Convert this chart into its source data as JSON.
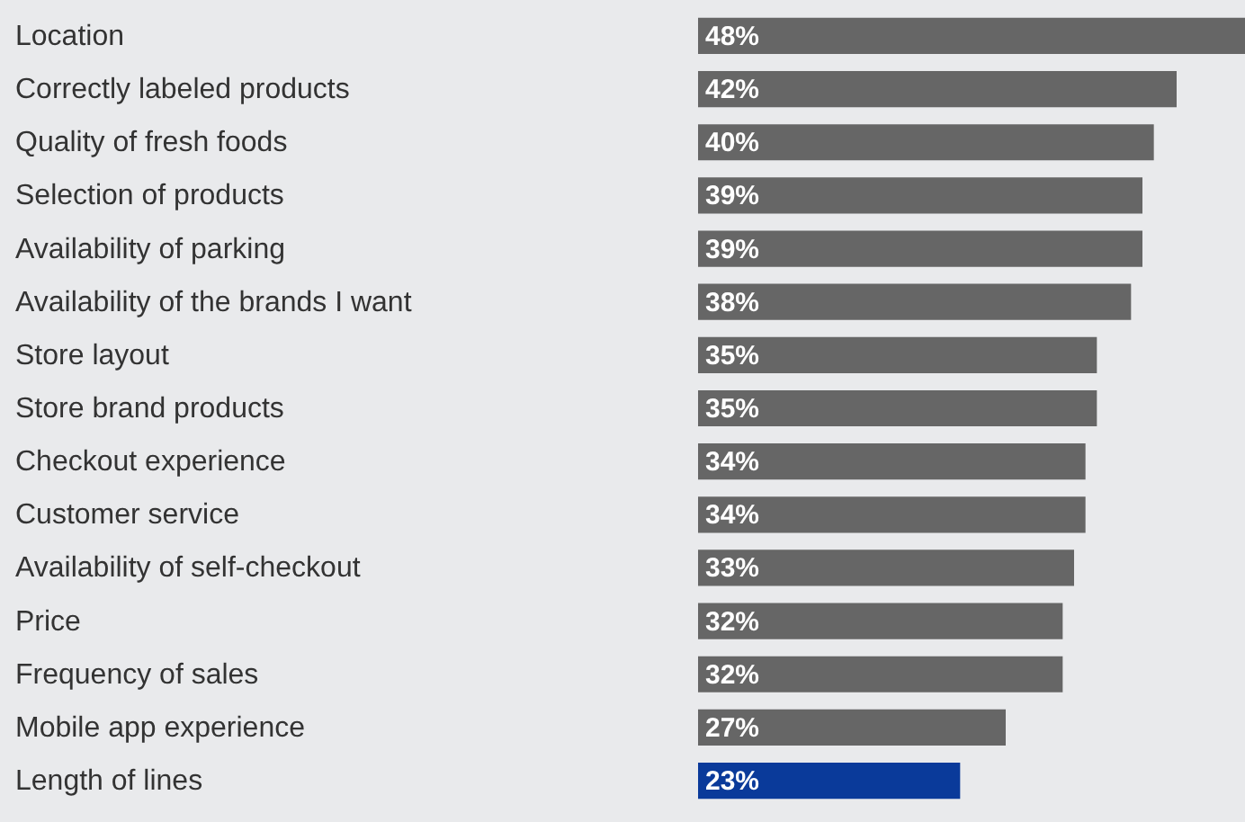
{
  "chart_data": {
    "type": "bar",
    "orientation": "horizontal",
    "categories": [
      "Location",
      "Correctly labeled products",
      "Quality of fresh foods",
      "Selection of products",
      "Availability of parking",
      "Availability of the brands I want",
      "Store layout",
      "Store brand products",
      "Checkout experience",
      "Customer service",
      "Availability of self-checkout",
      "Price",
      "Frequency of sales",
      "Mobile app experience",
      "Length of lines"
    ],
    "values": [
      48,
      42,
      40,
      39,
      39,
      38,
      35,
      35,
      34,
      34,
      33,
      32,
      32,
      27,
      23
    ],
    "value_labels": [
      "48%",
      "42%",
      "40%",
      "39%",
      "39%",
      "38%",
      "35%",
      "35%",
      "34%",
      "34%",
      "33%",
      "32%",
      "32%",
      "27%",
      "23%"
    ],
    "colors": [
      "#666666",
      "#666666",
      "#666666",
      "#666666",
      "#666666",
      "#666666",
      "#666666",
      "#666666",
      "#666666",
      "#666666",
      "#666666",
      "#666666",
      "#666666",
      "#666666",
      "#0a3a9a"
    ]
  }
}
